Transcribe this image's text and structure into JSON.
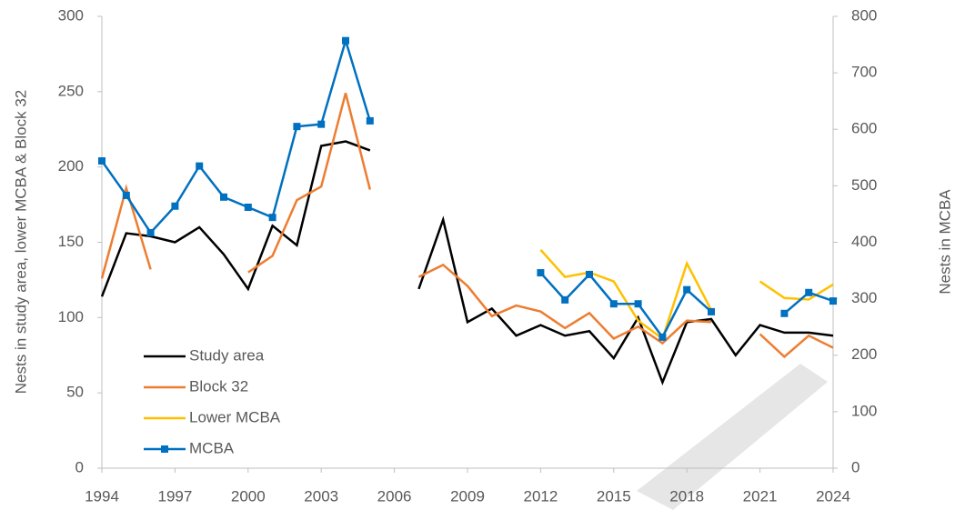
{
  "chart_data": {
    "type": "line",
    "x": [
      1994,
      1995,
      1996,
      1997,
      1998,
      1999,
      2000,
      2001,
      2002,
      2003,
      2004,
      2005,
      2006,
      2007,
      2008,
      2009,
      2010,
      2011,
      2012,
      2013,
      2014,
      2015,
      2016,
      2017,
      2018,
      2019,
      2020,
      2021,
      2022,
      2023,
      2024
    ],
    "series": [
      {
        "name": "Study area",
        "color": "#000000",
        "values": [
          114,
          156,
          154,
          150,
          160,
          142,
          119,
          161,
          148,
          214,
          217,
          211,
          null,
          119,
          165,
          97,
          106,
          88,
          95,
          88,
          91,
          73,
          100,
          57,
          97,
          99,
          75,
          95,
          90,
          90,
          88
        ]
      },
      {
        "name": "Block 32",
        "color": "#ed7d31",
        "values": [
          126,
          186,
          132,
          null,
          null,
          null,
          130,
          141,
          178,
          187,
          249,
          185,
          null,
          127,
          135,
          121,
          101,
          108,
          104,
          93,
          103,
          86,
          94,
          83,
          98,
          97,
          null,
          89,
          74,
          88,
          80
        ]
      },
      {
        "name": "Lower MCBA",
        "color": "#ffc000",
        "values": [
          null,
          null,
          null,
          null,
          null,
          null,
          null,
          null,
          null,
          null,
          null,
          null,
          null,
          null,
          null,
          null,
          null,
          null,
          145,
          127,
          130,
          124,
          98,
          86,
          136,
          105,
          null,
          124,
          113,
          112,
          122
        ]
      },
      {
        "name": "MCBA",
        "color": "#0070c0",
        "axis": "y2",
        "marker": "square",
        "values": [
          544,
          483,
          417,
          464,
          535,
          480,
          462,
          444,
          605,
          609,
          757,
          615,
          null,
          null,
          null,
          null,
          null,
          null,
          346,
          298,
          343,
          291,
          291,
          232,
          316,
          277,
          null,
          null,
          274,
          311,
          296
        ]
      }
    ],
    "ylabel": "Nests in study area, lower MCBA & Block 32",
    "y2label": "Nests in MCBA",
    "xlim": [
      1994,
      2024
    ],
    "xticks": [
      1994,
      1997,
      2000,
      2003,
      2006,
      2009,
      2012,
      2015,
      2018,
      2021,
      2024
    ],
    "ylim": [
      0,
      300
    ],
    "yticks": [
      0,
      50,
      100,
      150,
      200,
      250,
      300
    ],
    "y2lim": [
      0,
      800
    ],
    "y2ticks": [
      0,
      100,
      200,
      300,
      400,
      500,
      600,
      700,
      800
    ],
    "legend": "lower-left"
  }
}
